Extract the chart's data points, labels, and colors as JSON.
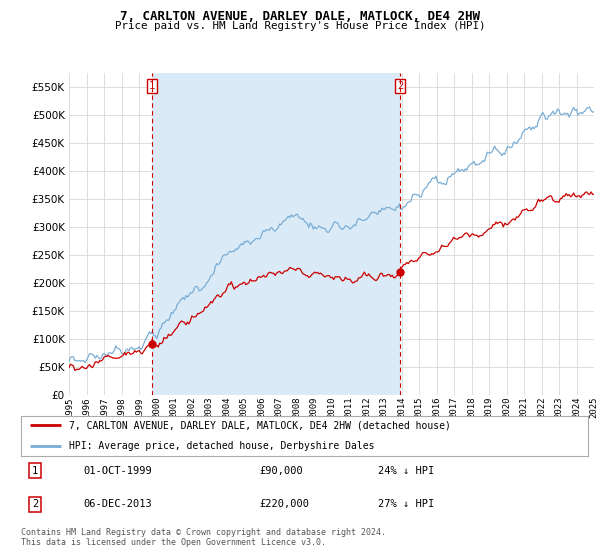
{
  "title": "7, CARLTON AVENUE, DARLEY DALE, MATLOCK, DE4 2HW",
  "subtitle": "Price paid vs. HM Land Registry's House Price Index (HPI)",
  "legend_line1": "7, CARLTON AVENUE, DARLEY DALE, MATLOCK, DE4 2HW (detached house)",
  "legend_line2": "HPI: Average price, detached house, Derbyshire Dales",
  "annotation1_label": "1",
  "annotation1_date": "01-OCT-1999",
  "annotation1_price": "£90,000",
  "annotation1_hpi": "24% ↓ HPI",
  "annotation2_label": "2",
  "annotation2_date": "06-DEC-2013",
  "annotation2_price": "£220,000",
  "annotation2_hpi": "27% ↓ HPI",
  "footer": "Contains HM Land Registry data © Crown copyright and database right 2024.\nThis data is licensed under the Open Government Licence v3.0.",
  "hpi_color": "#7aaed6",
  "hpi_fill_color": "#daeaf6",
  "price_color": "#cc0000",
  "annotation_color": "#cc0000",
  "background_color": "#ffffff",
  "grid_color": "#d8d8d8",
  "ylim": [
    0,
    575000
  ],
  "yticks": [
    0,
    50000,
    100000,
    150000,
    200000,
    250000,
    300000,
    350000,
    400000,
    450000,
    500000,
    550000
  ],
  "sale1_x": 1999.75,
  "sale1_y": 90000,
  "sale2_x": 2013.92,
  "sale2_y": 220000,
  "xlim_start": 1995,
  "xlim_end": 2025
}
